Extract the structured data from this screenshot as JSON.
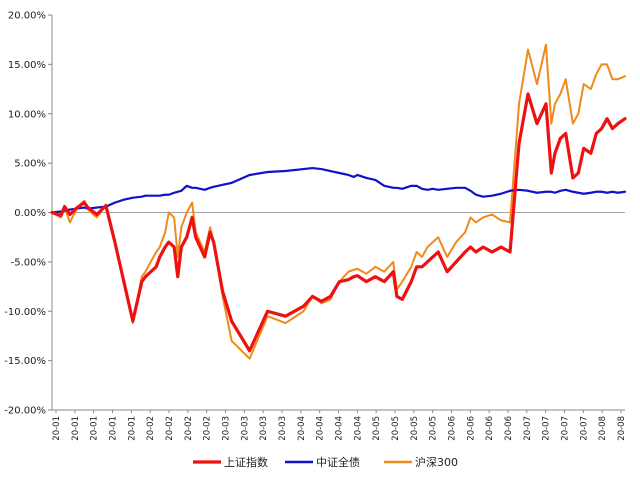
{
  "chart_data": {
    "type": "line",
    "title": "",
    "xlabel": "",
    "ylabel": "",
    "ylim": [
      -0.2,
      0.2
    ],
    "y_ticks": [
      -0.2,
      -0.15,
      -0.1,
      -0.05,
      0.0,
      0.05,
      0.1,
      0.15,
      0.2
    ],
    "y_tick_labels": [
      "-20.00%",
      "-15.00%",
      "-10.00%",
      "-5.00%",
      "0.00%",
      "5.00%",
      "10.00%",
      "15.00%",
      "20.00%"
    ],
    "x_tick_labels": [
      "20-01",
      "20-01",
      "20-01",
      "20-01",
      "20-01",
      "20-02",
      "20-02",
      "20-02",
      "20-02",
      "20-03",
      "20-03",
      "20-03",
      "20-03",
      "20-04",
      "20-04",
      "20-04",
      "20-04",
      "20-05",
      "20-05",
      "20-05",
      "20-05",
      "20-06",
      "20-06",
      "20-06",
      "20-06",
      "20-07",
      "20-07",
      "20-07",
      "20-07",
      "20-08",
      "20-08"
    ],
    "grid": false,
    "legend_position": "bottom",
    "x_index": [
      0,
      5,
      7,
      10,
      14,
      18,
      20,
      25,
      30,
      35,
      40,
      45,
      50,
      52,
      55,
      58,
      60,
      63,
      65,
      68,
      70,
      72,
      75,
      78,
      80,
      85,
      88,
      90,
      95,
      100,
      110,
      120,
      130,
      140,
      145,
      150,
      155,
      160,
      165,
      168,
      170,
      175,
      180,
      185,
      190,
      192,
      195,
      200,
      203,
      206,
      209,
      212,
      215,
      220,
      225,
      230,
      233,
      236,
      240,
      245,
      250,
      255,
      260,
      265,
      270,
      275,
      278,
      280,
      283,
      286,
      290,
      293,
      296,
      300,
      303,
      306,
      309,
      312,
      315,
      319
    ],
    "series": [
      {
        "name": "上证指数",
        "color": "#ee1111",
        "values": [
          0.0,
          -0.003,
          0.006,
          -0.002,
          0.005,
          0.01,
          0.005,
          -0.002,
          0.007,
          -0.03,
          -0.07,
          -0.11,
          -0.07,
          -0.065,
          -0.06,
          -0.055,
          -0.045,
          -0.035,
          -0.03,
          -0.035,
          -0.065,
          -0.035,
          -0.025,
          -0.005,
          -0.025,
          -0.045,
          -0.02,
          -0.03,
          -0.08,
          -0.11,
          -0.14,
          -0.1,
          -0.105,
          -0.095,
          -0.085,
          -0.09,
          -0.085,
          -0.07,
          -0.068,
          -0.065,
          -0.064,
          -0.07,
          -0.065,
          -0.07,
          -0.06,
          -0.085,
          -0.088,
          -0.07,
          -0.055,
          -0.055,
          -0.05,
          -0.045,
          -0.04,
          -0.06,
          -0.05,
          -0.04,
          -0.035,
          -0.04,
          -0.035,
          -0.04,
          -0.035,
          -0.04,
          0.07,
          0.12,
          0.09,
          0.11,
          0.04,
          0.06,
          0.075,
          0.08,
          0.035,
          0.04,
          0.065,
          0.06,
          0.08,
          0.085,
          0.095,
          0.085,
          0.09,
          0.095
        ]
      },
      {
        "name": "中证全债",
        "color": "#1111cc",
        "values": [
          0.0,
          0.001,
          0.002,
          0.003,
          0.004,
          0.005,
          0.004,
          0.005,
          0.006,
          0.01,
          0.013,
          0.015,
          0.016,
          0.017,
          0.017,
          0.017,
          0.017,
          0.018,
          0.018,
          0.02,
          0.021,
          0.022,
          0.027,
          0.025,
          0.025,
          0.023,
          0.025,
          0.026,
          0.028,
          0.03,
          0.038,
          0.041,
          0.042,
          0.044,
          0.045,
          0.044,
          0.042,
          0.04,
          0.038,
          0.036,
          0.038,
          0.035,
          0.033,
          0.027,
          0.025,
          0.025,
          0.024,
          0.027,
          0.027,
          0.024,
          0.023,
          0.024,
          0.023,
          0.024,
          0.025,
          0.025,
          0.022,
          0.018,
          0.016,
          0.017,
          0.019,
          0.022,
          0.023,
          0.022,
          0.02,
          0.021,
          0.021,
          0.02,
          0.022,
          0.023,
          0.021,
          0.02,
          0.019,
          0.02,
          0.021,
          0.021,
          0.02,
          0.021,
          0.02,
          0.021
        ]
      },
      {
        "name": "沪深300",
        "color": "#f08a1c",
        "values": [
          0.0,
          -0.005,
          0.005,
          -0.01,
          0.005,
          0.012,
          0.003,
          -0.005,
          0.008,
          -0.03,
          -0.07,
          -0.112,
          -0.065,
          -0.06,
          -0.05,
          -0.04,
          -0.035,
          -0.02,
          0.0,
          -0.005,
          -0.045,
          -0.015,
          0.0,
          0.01,
          -0.02,
          -0.04,
          -0.015,
          -0.03,
          -0.085,
          -0.13,
          -0.148,
          -0.105,
          -0.112,
          -0.1,
          -0.085,
          -0.092,
          -0.088,
          -0.07,
          -0.06,
          -0.058,
          -0.057,
          -0.062,
          -0.055,
          -0.06,
          -0.05,
          -0.078,
          -0.07,
          -0.055,
          -0.04,
          -0.045,
          -0.035,
          -0.03,
          -0.025,
          -0.045,
          -0.03,
          -0.02,
          -0.005,
          -0.01,
          -0.005,
          -0.002,
          -0.008,
          -0.01,
          0.11,
          0.165,
          0.13,
          0.17,
          0.09,
          0.11,
          0.12,
          0.135,
          0.09,
          0.1,
          0.13,
          0.125,
          0.14,
          0.15,
          0.15,
          0.135,
          0.135,
          0.138
        ]
      }
    ]
  }
}
